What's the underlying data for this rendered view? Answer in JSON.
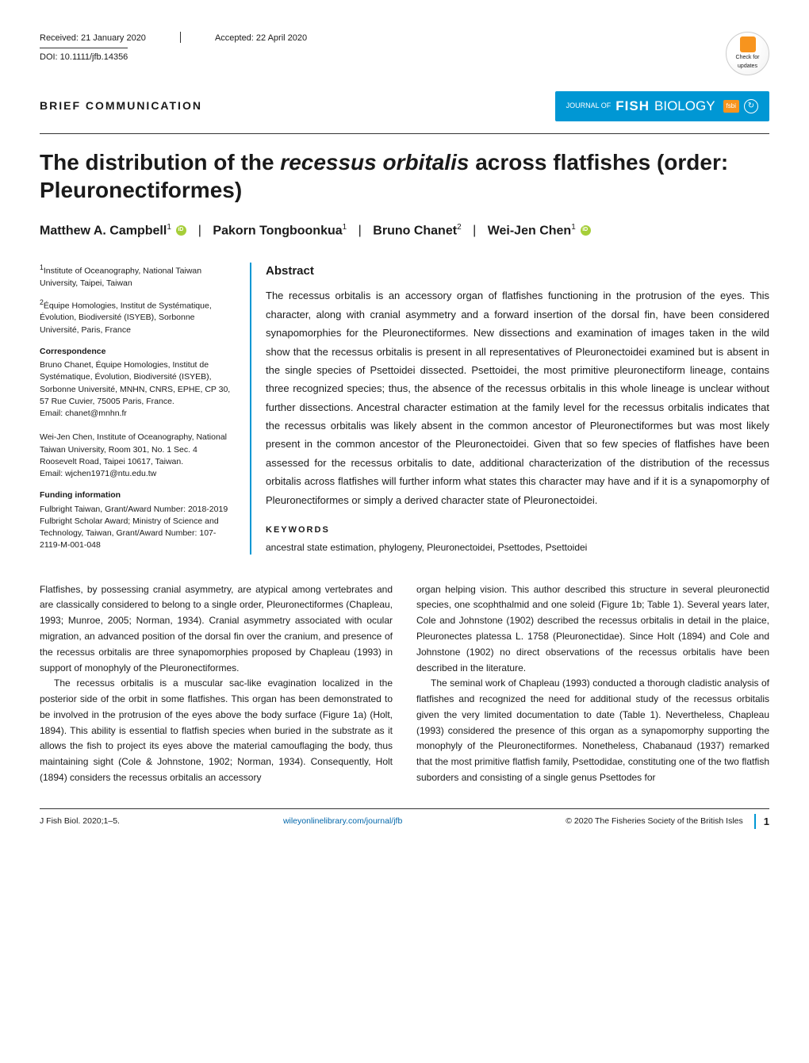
{
  "meta": {
    "received": "Received: 21 January 2020",
    "accepted": "Accepted: 22 April 2020",
    "doi": "DOI: 10.1111/jfb.14356",
    "check_updates": "Check for updates"
  },
  "article_type": "BRIEF COMMUNICATION",
  "journal_banner": {
    "prefix": "JOURNAL OF",
    "fish": "FISH",
    "biology": "BIOLOGY",
    "fsbi": "fsbi"
  },
  "title_parts": {
    "p1": "The distribution of the ",
    "italic": "recessus orbitalis",
    "p2": " across flatfishes (order: Pleuronectiformes)"
  },
  "authors": {
    "a1": "Matthew A. Campbell",
    "a1_sup": "1",
    "a2": "Pakorn Tongboonkua",
    "a2_sup": "1",
    "a3": "Bruno Chanet",
    "a3_sup": "2",
    "a4": "Wei-Jen Chen",
    "a4_sup": "1"
  },
  "affiliations": {
    "aff1_sup": "1",
    "aff1": "Institute of Oceanography, National Taiwan University, Taipei, Taiwan",
    "aff2_sup": "2",
    "aff2": "Équipe Homologies, Institut de Systématique, Évolution, Biodiversité (ISYEB), Sorbonne Université, Paris, France"
  },
  "correspondence": {
    "heading": "Correspondence",
    "c1": "Bruno Chanet, Équipe Homologies, Institut de Systématique, Évolution, Biodiversité (ISYEB), Sorbonne Université, MNHN, CNRS, EPHE, CP 30, 57 Rue Cuvier, 75005 Paris, France.",
    "c1_email": "Email: chanet@mnhn.fr",
    "c2": "Wei-Jen Chen, Institute of Oceanography, National Taiwan University, Room 301, No. 1 Sec. 4 Roosevelt Road, Taipei 10617, Taiwan.",
    "c2_email": "Email: wjchen1971@ntu.edu.tw"
  },
  "funding": {
    "heading": "Funding information",
    "text": "Fulbright Taiwan, Grant/Award Number: 2018-2019 Fulbright Scholar Award; Ministry of Science and Technology, Taiwan, Grant/Award Number: 107-2119-M-001-048"
  },
  "abstract": {
    "heading": "Abstract",
    "text": "The recessus orbitalis is an accessory organ of flatfishes functioning in the protrusion of the eyes. This character, along with cranial asymmetry and a forward insertion of the dorsal fin, have been considered synapomorphies for the Pleuronectiformes. New dissections and examination of images taken in the wild show that the recessus orbitalis is present in all representatives of Pleuronectoidei examined but is absent in the single species of Psettoidei dissected. Psettoidei, the most primitive pleuronectiform lineage, contains three recognized species; thus, the absence of the recessus orbitalis in this whole lineage is unclear without further dissections. Ancestral character estimation at the family level for the recessus orbitalis indicates that the recessus orbitalis was likely absent in the common ancestor of Pleuronectiformes but was most likely present in the common ancestor of the Pleuronectoidei. Given that so few species of flatfishes have been assessed for the recessus orbitalis to date, additional characterization of the distribution of the recessus orbitalis across flatfishes will further inform what states this character may have and if it is a synapomorphy of Pleuronectiformes or simply a derived character state of Pleuronectoidei."
  },
  "keywords": {
    "heading": "KEYWORDS",
    "text": "ancestral state estimation, phylogeny, Pleuronectoidei, Psettodes, Psettoidei"
  },
  "body": {
    "left_p1": "Flatfishes, by possessing cranial asymmetry, are atypical among vertebrates and are classically considered to belong to a single order, Pleuronectiformes (Chapleau, 1993; Munroe, 2005; Norman, 1934). Cranial asymmetry associated with ocular migration, an advanced position of the dorsal fin over the cranium, and presence of the recessus orbitalis are three synapomorphies proposed by Chapleau (1993) in support of monophyly of the Pleuronectiformes.",
    "left_p2": "The recessus orbitalis is a muscular sac-like evagination localized in the posterior side of the orbit in some flatfishes. This organ has been demonstrated to be involved in the protrusion of the eyes above the body surface (Figure 1a) (Holt, 1894). This ability is essential to flatfish species when buried in the substrate as it allows the fish to project its eyes above the material camouflaging the body, thus maintaining sight (Cole & Johnstone, 1902; Norman, 1934). Consequently, Holt (1894) considers the recessus orbitalis an accessory",
    "right_p1": "organ helping vision. This author described this structure in several pleuronectid species, one scophthalmid and one soleid (Figure 1b; Table 1). Several years later, Cole and Johnstone (1902) described the recessus orbitalis in detail in the plaice, Pleuronectes platessa L. 1758 (Pleuronectidae). Since Holt (1894) and Cole and Johnstone (1902) no direct observations of the recessus orbitalis have been described in the literature.",
    "right_p2": "The seminal work of Chapleau (1993) conducted a thorough cladistic analysis of flatfishes and recognized the need for additional study of the recessus orbitalis given the very limited documentation to date (Table 1). Nevertheless, Chapleau (1993) considered the presence of this organ as a synapomorphy supporting the monophyly of the Pleuronectiformes. Nonetheless, Chabanaud (1937) remarked that the most primitive flatfish family, Psettodidae, constituting one of the two flatfish suborders and consisting of a single genus Psettodes for"
  },
  "footer": {
    "left": "J Fish Biol. 2020;1–5.",
    "center": "wileyonlinelibrary.com/journal/jfb",
    "right": "© 2020 The Fisheries Society of the British Isles",
    "page": "1"
  },
  "colors": {
    "accent_blue": "#0097d4",
    "orcid_green": "#a6ce39",
    "orange": "#f7941e"
  }
}
